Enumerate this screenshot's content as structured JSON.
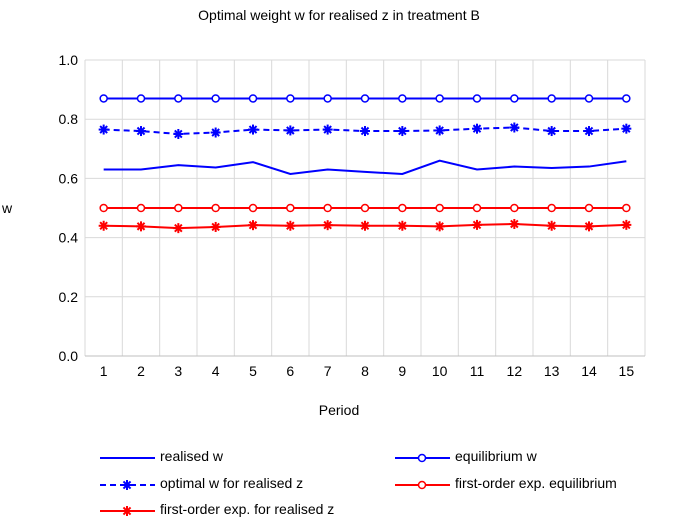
{
  "chart_data": {
    "type": "line",
    "title": "Optimal weight w for realised z in treatment B",
    "xlabel": "Period",
    "ylabel": "w",
    "x": [
      1,
      2,
      3,
      4,
      5,
      6,
      7,
      8,
      9,
      10,
      11,
      12,
      13,
      14,
      15
    ],
    "yticks": [
      "0.0",
      "0.2",
      "0.4",
      "0.6",
      "0.8",
      "1.0"
    ],
    "ylim": [
      0,
      1.0
    ],
    "grid": true,
    "legend_position": "bottom",
    "series": [
      {
        "name": "realised w",
        "color": "#0000ff",
        "dash": "solid",
        "marker": "none",
        "values": [
          0.63,
          0.63,
          0.645,
          0.637,
          0.655,
          0.615,
          0.63,
          0.622,
          0.615,
          0.66,
          0.63,
          0.64,
          0.635,
          0.64,
          0.658
        ]
      },
      {
        "name": "equilibrium w",
        "color": "#0000ff",
        "dash": "solid",
        "marker": "circle",
        "values": [
          0.87,
          0.87,
          0.87,
          0.87,
          0.87,
          0.87,
          0.87,
          0.87,
          0.87,
          0.87,
          0.87,
          0.87,
          0.87,
          0.87,
          0.87
        ]
      },
      {
        "name": "optimal w for realised z",
        "color": "#0000ff",
        "dash": "dashed",
        "marker": "star",
        "values": [
          0.765,
          0.76,
          0.75,
          0.755,
          0.765,
          0.762,
          0.765,
          0.76,
          0.76,
          0.762,
          0.768,
          0.772,
          0.76,
          0.76,
          0.768
        ]
      },
      {
        "name": "first-order exp. equilibrium",
        "color": "#ff0000",
        "dash": "solid",
        "marker": "circle",
        "values": [
          0.5,
          0.5,
          0.5,
          0.5,
          0.5,
          0.5,
          0.5,
          0.5,
          0.5,
          0.5,
          0.5,
          0.5,
          0.5,
          0.5,
          0.5
        ]
      },
      {
        "name": "first-order exp. for realised z",
        "color": "#ff0000",
        "dash": "solid",
        "marker": "star",
        "values": [
          0.44,
          0.438,
          0.432,
          0.436,
          0.442,
          0.44,
          0.442,
          0.44,
          0.44,
          0.438,
          0.443,
          0.446,
          0.44,
          0.438,
          0.443
        ]
      }
    ]
  }
}
